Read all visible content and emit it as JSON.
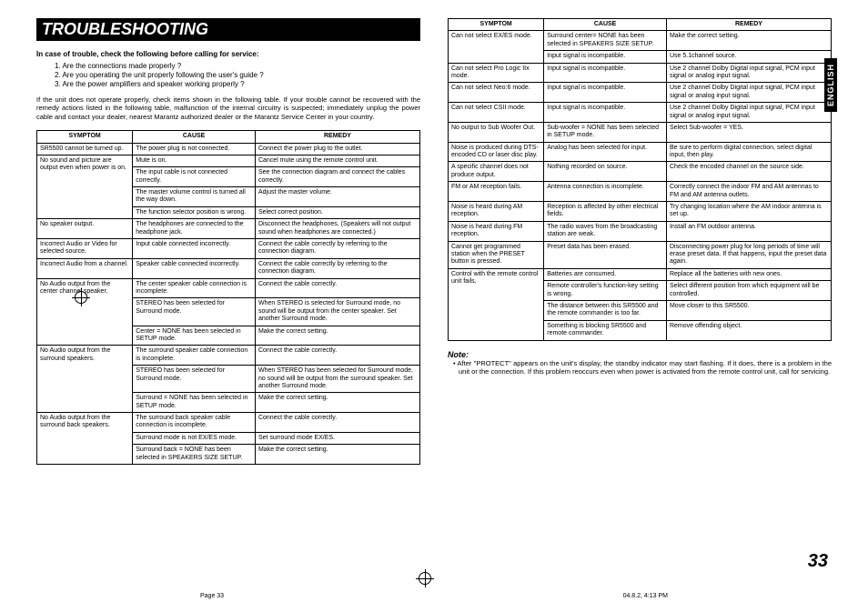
{
  "page": {
    "title": "TROUBLESHOOTING",
    "side_tab": "ENGLISH",
    "page_number": "33",
    "footer_left": "Page 33",
    "footer_right": "04.8.2, 4:13 PM"
  },
  "intro": {
    "bold": "In case of trouble, check the following before calling for service:",
    "items": [
      "1.    Are the connections made properly ?",
      "2.    Are you operating the unit properly following the user's guide ?",
      "3.    Are the power amplifiers and speaker working properly ?"
    ],
    "para": "If the unit does not operate properly, check items shown in the following table. If your trouble cannot be recovered with the remedy actions listed in the following table, malfunction of the internal circuitry is suspected; immediately unplug the power cable and contact your dealer, nearest Marantz authorized dealer or the Marantz Service Center in your country."
  },
  "headers": {
    "c1": "SYMPTOM",
    "c2": "CAUSE",
    "c3": "REMEDY"
  },
  "table1": [
    {
      "s": "SR5500 cannot be turned up.",
      "rows": [
        [
          "The power plug is not connected.",
          "Connect the power plug to the outlet."
        ]
      ]
    },
    {
      "s": "No sound and picture are output even when power is on.",
      "rows": [
        [
          "Mute is on.",
          "Cancel mute using the remote control unit."
        ],
        [
          "The input cable is not connected correctly.",
          "See the connection diagram and connect the cables correctly."
        ],
        [
          "The master volume control is turned all the way down.",
          "Adjust the master volume."
        ],
        [
          "The function selector position is wrong.",
          "Select correct position."
        ]
      ]
    },
    {
      "s": "No speaker output.",
      "rows": [
        [
          "The headphones are connected to the headphone jack.",
          "Disconnect the headphones. (Speakers will not output sound when headphones are connected.)"
        ]
      ]
    },
    {
      "s": "Incorrect Audio or Video for selected source.",
      "rows": [
        [
          "Input cable connected incorrectly.",
          "Connect the cable correctly by referring to the connection diagram."
        ]
      ]
    },
    {
      "s": "Incorrect Audio from a channel.",
      "rows": [
        [
          "Speaker cable connected incorrectly.",
          "Connect the cable correctly by referring to the connection diagram."
        ]
      ]
    },
    {
      "s": "No Audio output from the center channel speaker.",
      "rows": [
        [
          "The center speaker cable connection is incomplete.",
          "Connect the cable correctly."
        ],
        [
          "STEREO has been selected for Surround mode.",
          "When STEREO is selected for Surround mode, no sound will be output from the center speaker. Set another Surround mode."
        ],
        [
          "Center = NONE has been selected in SETUP mode.",
          "Make the correct setting."
        ]
      ]
    },
    {
      "s": "No Audio output from the surround speakers.",
      "rows": [
        [
          "The surround speaker cable connection is incomplete.",
          "Connect the cable correctly."
        ],
        [
          "STEREO has been selected for Surround mode.",
          "When STEREO has been selected for Surround mode, no sound will be output from the surround speaker. Set another Surround mode."
        ],
        [
          "Surround = NONE has been selected in SETUP mode.",
          "Make the correct setting."
        ]
      ]
    },
    {
      "s": "No Audio output from the surround back speakers.",
      "rows": [
        [
          "The surround back speaker cable connection is incomplete.",
          "Connect the cable correctly."
        ],
        [
          "Surround mode is not EX/ES mode.",
          "Set surround mode EX/ES."
        ],
        [
          "Surround back = NONE has been selected in SPEAKERS SIZE SETUP.",
          "Make the correct setting."
        ]
      ]
    }
  ],
  "table2": [
    {
      "s": "Can not select EX/ES mode.",
      "rows": [
        [
          "Surround center= NONE has been selected in SPEAKERS SIZE SETUP.",
          "Make the correct setting."
        ],
        [
          "Input signal is incompatible.",
          "Use 5.1channel source."
        ]
      ]
    },
    {
      "s": "Can not select Pro Logic IIx mode.",
      "rows": [
        [
          "Input signal is incompatible.",
          "Use 2 channel Dolby Digital input signal, PCM input signal or analog input signal."
        ]
      ]
    },
    {
      "s": "Can not select Neo:6 mode.",
      "rows": [
        [
          "Input signal is incompatible.",
          "Use 2 channel Dolby Digital input signal, PCM input signal or analog input signal."
        ]
      ]
    },
    {
      "s": "Can not select CSII mode.",
      "rows": [
        [
          "Input signal is incompatible.",
          "Use 2 channel Dolby Digital input signal, PCM input signal or analog input signal."
        ]
      ]
    },
    {
      "s": "No output to Sub Woofer Out.",
      "rows": [
        [
          "Sub-woofer = NONE has been selected in SETUP mode.",
          "Select Sub-woofer = YES."
        ]
      ]
    },
    {
      "s": "Noise is produced during DTS-encoded CD or laser disc play.",
      "rows": [
        [
          "Analog has been selected for input.",
          "Be sure to perform digital connection, select digital input, then play."
        ]
      ]
    },
    {
      "s": "A specific channel does not produce output.",
      "rows": [
        [
          "Nothing recorded on source.",
          "Check the encoded channel on the source side."
        ]
      ]
    },
    {
      "s": "FM or AM reception fails.",
      "rows": [
        [
          "Antenna connection is incomplete.",
          "Correctly connect the indoor FM and AM antennas to FM and AM antenna outlets."
        ]
      ]
    },
    {
      "s": "Noise is heard during AM reception.",
      "rows": [
        [
          "Reception is affected by other electrical fields.",
          "Try changing location where the AM indoor antenna is set up."
        ]
      ]
    },
    {
      "s": "Noise is heard during FM reception.",
      "rows": [
        [
          "The radio waves from the broadcasting station are weak.",
          "Install an FM outdoor antenna."
        ]
      ]
    },
    {
      "s": "Cannot get programmed station when the PRESET button is pressed.",
      "rows": [
        [
          "Preset data has been erased.",
          "Disconnecting power plug for long periods of time will erase preset data. If that happens, input the preset data again."
        ]
      ]
    },
    {
      "s": "Control with the remote control unit fails.",
      "rows": [
        [
          "Batteries are consumed.",
          "Replace all the batteries with new ones."
        ],
        [
          "Remote controller's function-key setting is wrong.",
          "Select different position from which equipment will be controlled."
        ],
        [
          "The distance between this SR5500 and the remote commander is too far.",
          "Move closer to this SR5500."
        ],
        [
          "Something is blocking SR5500 and remote commander.",
          "Remove offending object."
        ]
      ]
    }
  ],
  "note": {
    "label": "Note:",
    "text": "• After \"PROTECT\" appears on the unit's display, the standby indicator may start flashing. If it does, there is a problem in the unit or the connection. If this problem reoccurs even when power is activated from the remote control unit, call for servicing."
  },
  "widths": {
    "c1_pct": 25,
    "c2_pct": 32,
    "c3_pct": 43
  }
}
